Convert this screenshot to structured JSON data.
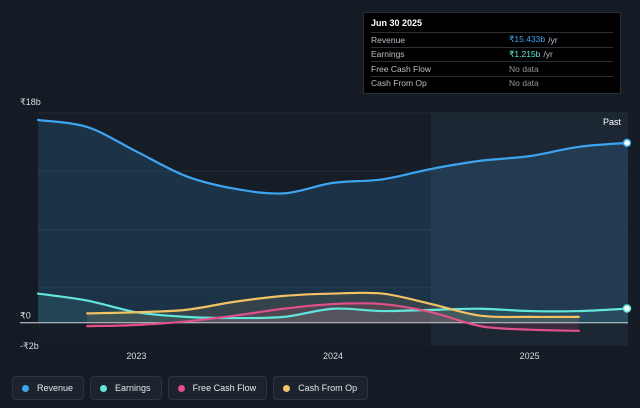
{
  "tooltip": {
    "date": "Jun 30 2025",
    "rows": [
      {
        "label": "Revenue",
        "value": "₹15.433b",
        "unit": "/yr"
      },
      {
        "label": "Earnings",
        "value": "₹1.215b",
        "unit": "/yr"
      },
      {
        "label": "Free Cash Flow",
        "value": "No data",
        "unit": ""
      },
      {
        "label": "Cash From Op",
        "value": "No data",
        "unit": ""
      }
    ]
  },
  "past_label": "Past",
  "legend": [
    {
      "label": "Revenue",
      "color": "#3da5f0"
    },
    {
      "label": "Earnings",
      "color": "#62e6dc"
    },
    {
      "label": "Free Cash Flow",
      "color": "#e0508a"
    },
    {
      "label": "Cash From Op",
      "color": "#f2c265"
    }
  ],
  "chart_data": {
    "type": "line",
    "title": "",
    "xlabel": "",
    "ylabel": "",
    "x_ticks": [
      "2023",
      "2024",
      "2025"
    ],
    "y_ticks": [
      {
        "label": "₹18b",
        "value": 18
      },
      {
        "label": "₹0",
        "value": 0
      },
      {
        "label": "-₹2b",
        "value": -2
      }
    ],
    "ylim": [
      -2,
      18
    ],
    "xlim": [
      2022.5,
      2025.5
    ],
    "series": [
      {
        "name": "Revenue",
        "color": "#3da5f0",
        "x": [
          2022.5,
          2022.75,
          2023.0,
          2023.25,
          2023.5,
          2023.75,
          2024.0,
          2024.25,
          2024.5,
          2024.75,
          2025.0,
          2025.25,
          2025.5
        ],
        "y": [
          17.4,
          16.8,
          14.7,
          12.6,
          11.5,
          11.1,
          12.0,
          12.3,
          13.2,
          13.9,
          14.3,
          15.1,
          15.433
        ]
      },
      {
        "name": "Earnings",
        "color": "#62e6dc",
        "x": [
          2022.5,
          2022.75,
          2023.0,
          2023.25,
          2023.5,
          2023.75,
          2024.0,
          2024.25,
          2024.5,
          2024.75,
          2025.0,
          2025.25,
          2025.5
        ],
        "y": [
          2.5,
          1.9,
          0.9,
          0.5,
          0.4,
          0.5,
          1.2,
          1.0,
          1.1,
          1.2,
          1.0,
          1.0,
          1.215
        ]
      },
      {
        "name": "Free Cash Flow",
        "color": "#e0508a",
        "x": [
          2022.75,
          2023.0,
          2023.25,
          2023.5,
          2023.75,
          2024.0,
          2024.25,
          2024.5,
          2024.75,
          2025.0,
          2025.25
        ],
        "y": [
          -0.3,
          -0.2,
          0.1,
          0.6,
          1.2,
          1.6,
          1.6,
          0.9,
          -0.3,
          -0.6,
          -0.7
        ]
      },
      {
        "name": "Cash From Op",
        "color": "#f2c265",
        "x": [
          2022.75,
          2023.0,
          2023.25,
          2023.5,
          2023.75,
          2024.0,
          2024.25,
          2024.5,
          2024.75,
          2025.0,
          2025.25
        ],
        "y": [
          0.8,
          0.9,
          1.1,
          1.8,
          2.3,
          2.5,
          2.5,
          1.6,
          0.6,
          0.5,
          0.5
        ]
      }
    ]
  }
}
